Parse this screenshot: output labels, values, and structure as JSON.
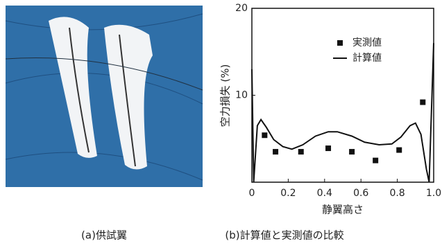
{
  "chart_data": {
    "type": "line",
    "xlabel": "静翼高さ",
    "ylabel": "空力損失 (%)",
    "xlim": [
      0,
      1
    ],
    "ylim": [
      0,
      20
    ],
    "xticks": [
      0,
      0.2,
      0.4,
      0.6,
      0.8,
      {
        "value": 1,
        "label": "1.0"
      }
    ],
    "yticks": [
      10,
      20
    ],
    "grid": false,
    "legend": "top",
    "series": [
      {
        "name": "実測値",
        "type": "scatter",
        "color": "#111111",
        "x": [
          0.07,
          0.13,
          0.27,
          0.42,
          0.55,
          0.68,
          0.81,
          0.94
        ],
        "values": [
          5.4,
          3.5,
          3.5,
          3.9,
          3.5,
          2.5,
          3.7,
          9.2
        ]
      },
      {
        "name": "計算値",
        "type": "line",
        "color": "#111111",
        "x": [
          0,
          0.01,
          0.03,
          0.05,
          0.08,
          0.12,
          0.17,
          0.22,
          0.28,
          0.35,
          0.42,
          0.47,
          0.55,
          0.62,
          0.7,
          0.77,
          0.82,
          0.87,
          0.9,
          0.93,
          0.96,
          0.975,
          1
        ],
        "values": [
          13,
          0,
          6.5,
          7.2,
          6.3,
          4.9,
          4.1,
          3.8,
          4.3,
          5.3,
          5.8,
          5.8,
          5.3,
          4.6,
          4.3,
          4.4,
          5.2,
          6.5,
          6.8,
          5.5,
          1.5,
          0,
          16
        ]
      }
    ]
  },
  "captions": {
    "a": "(a)供試翼",
    "b": "(b)計算値と実測値の比較"
  }
}
